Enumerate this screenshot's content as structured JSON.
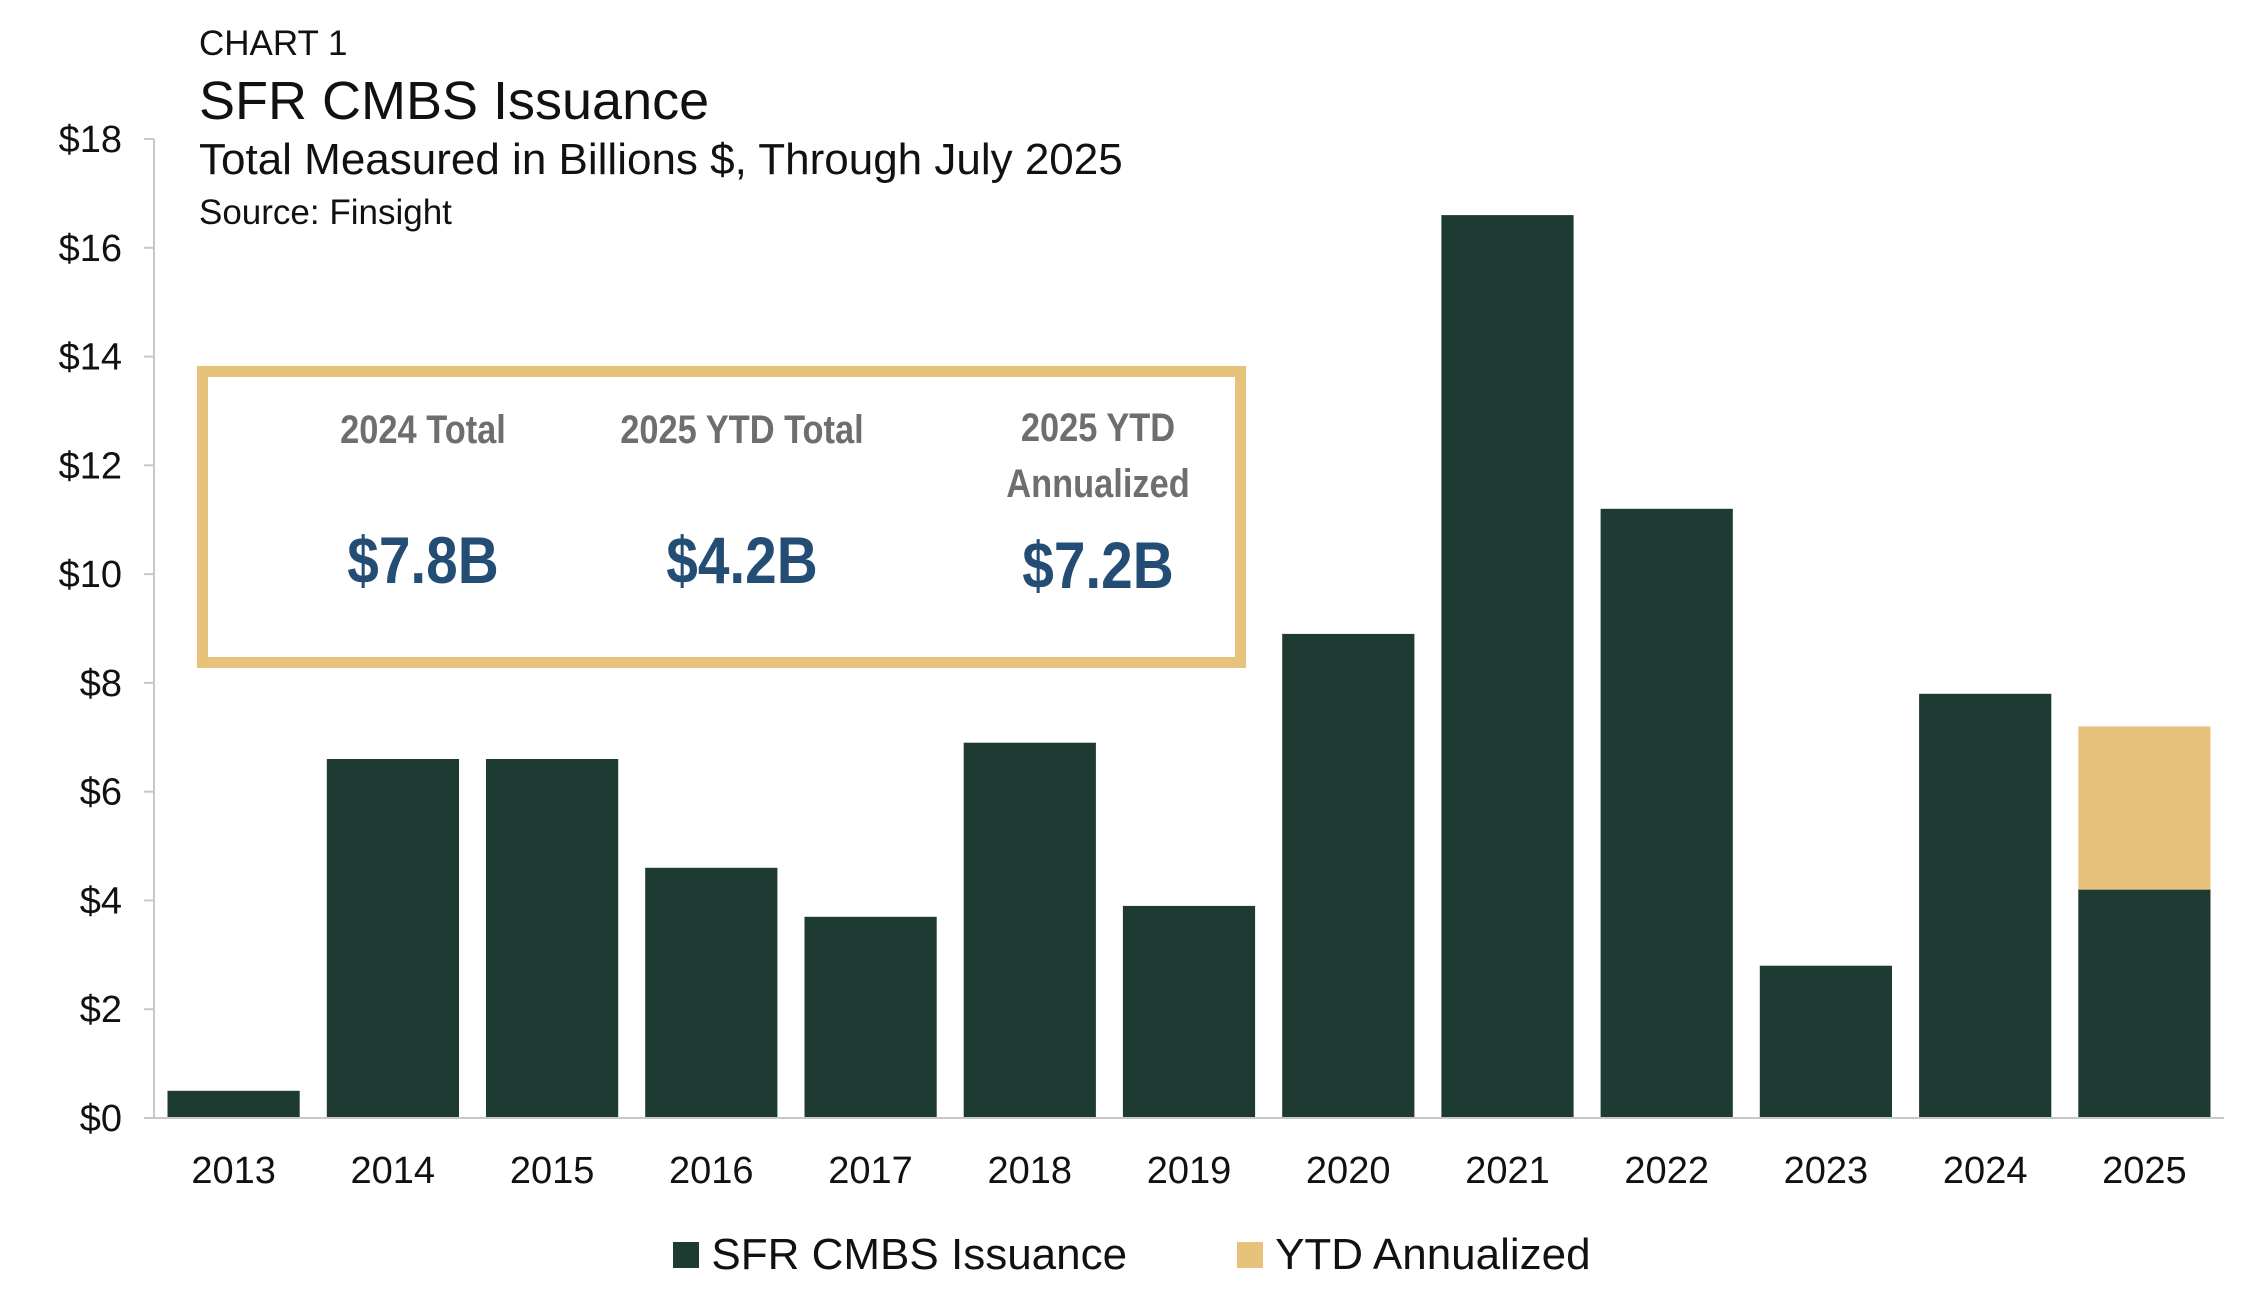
{
  "header": {
    "chart_label": "CHART 1",
    "title": "SFR CMBS Issuance",
    "subtitle": "Total Measured in Billions $, Through July 2025",
    "source": "Source: Finsight"
  },
  "callout": {
    "items": [
      {
        "label_lines": [
          "2024 Total"
        ],
        "value": "$7.8B"
      },
      {
        "label_lines": [
          "2025 YTD Total"
        ],
        "value": "$4.2B"
      },
      {
        "label_lines": [
          "2025 YTD",
          "Annualized"
        ],
        "value": "$7.2B"
      }
    ],
    "border_color": "#e7c27a",
    "value_color": "#234d75",
    "label_color": "#6e6e6e"
  },
  "chart_data": {
    "type": "bar",
    "stacked": true,
    "categories": [
      "2013",
      "2014",
      "2015",
      "2016",
      "2017",
      "2018",
      "2019",
      "2020",
      "2021",
      "2022",
      "2023",
      "2024",
      "2025"
    ],
    "series": [
      {
        "name": "SFR CMBS Issuance",
        "color": "#1e3b33",
        "values": [
          0.5,
          6.6,
          6.6,
          4.6,
          3.7,
          6.9,
          3.9,
          8.9,
          16.6,
          11.2,
          2.8,
          7.8,
          4.2
        ]
      },
      {
        "name": "YTD Annualized",
        "color": "#e7c27a",
        "values": [
          0,
          0,
          0,
          0,
          0,
          0,
          0,
          0,
          0,
          0,
          0,
          0,
          3.0
        ]
      }
    ],
    "y_ticks": [
      "$0",
      "$2",
      "$4",
      "$6",
      "$8",
      "$10",
      "$12",
      "$14",
      "$16",
      "$18"
    ],
    "ylim": [
      0,
      18
    ],
    "y_step": 2,
    "grid": false,
    "legend_position": "bottom"
  }
}
